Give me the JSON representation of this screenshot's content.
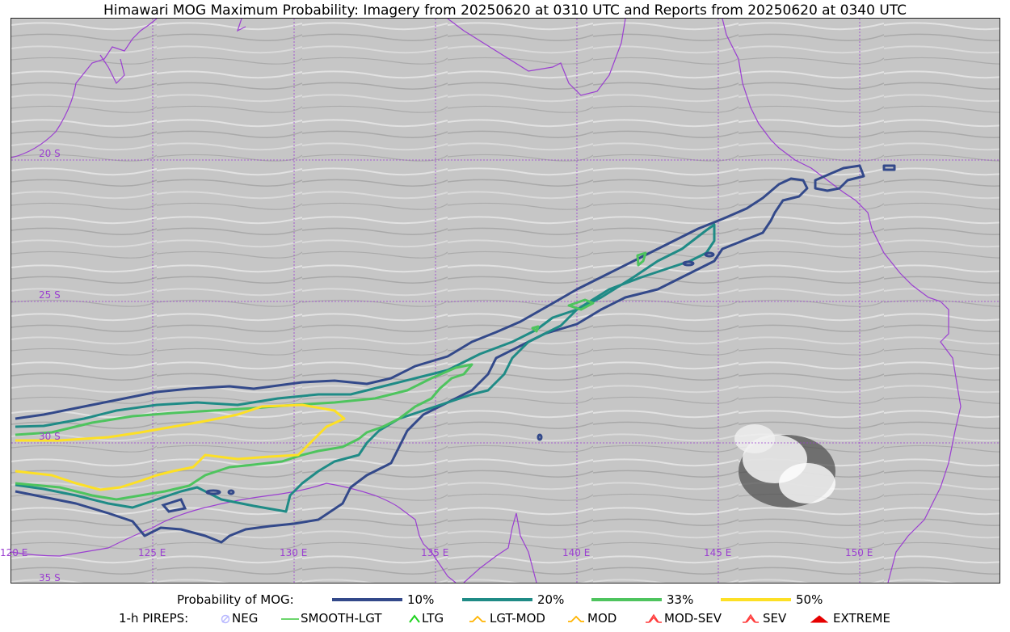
{
  "title": "Himawari MOG Maximum Probability: Imagery from 20250620 at 0310 UTC and Reports from 20250620 at 0340 UTC",
  "map": {
    "lat_labels": [
      "20 S",
      "25 S",
      "30 S",
      "35 S"
    ],
    "lon_labels": [
      "120 E",
      "125 E",
      "130 E",
      "135 E",
      "140 E",
      "145 E",
      "150 E"
    ],
    "gridline_color": "#9b3fd1",
    "coastline_color": "#9b3fd1"
  },
  "legend_probability": {
    "label": "Probability of MOG:",
    "items": [
      {
        "label": "10%",
        "color": "#33498a"
      },
      {
        "label": "20%",
        "color": "#1f8b86"
      },
      {
        "label": "33%",
        "color": "#4ec45e"
      },
      {
        "label": "50%",
        "color": "#fde025"
      }
    ]
  },
  "legend_pireps": {
    "label": "1-h PIREPS:",
    "items": [
      {
        "label": "NEG",
        "icon": "neg-icon",
        "color": "#b9b9ff"
      },
      {
        "label": "SMOOTH-LGT",
        "icon": "smooth-lgt-icon",
        "color": "#3cc83c"
      },
      {
        "label": "LTG",
        "icon": "ltg-icon",
        "color": "#1ed21e"
      },
      {
        "label": "LGT-MOD",
        "icon": "lgt-mod-icon",
        "color": "#ffb400"
      },
      {
        "label": "MOD",
        "icon": "mod-icon",
        "color": "#ffb400"
      },
      {
        "label": "MOD-SEV",
        "icon": "mod-sev-icon",
        "color": "#ff3c3c"
      },
      {
        "label": "SEV",
        "icon": "sev-icon",
        "color": "#ff3c3c"
      },
      {
        "label": "EXTREME",
        "icon": "extreme-icon",
        "color": "#e60000"
      }
    ]
  }
}
